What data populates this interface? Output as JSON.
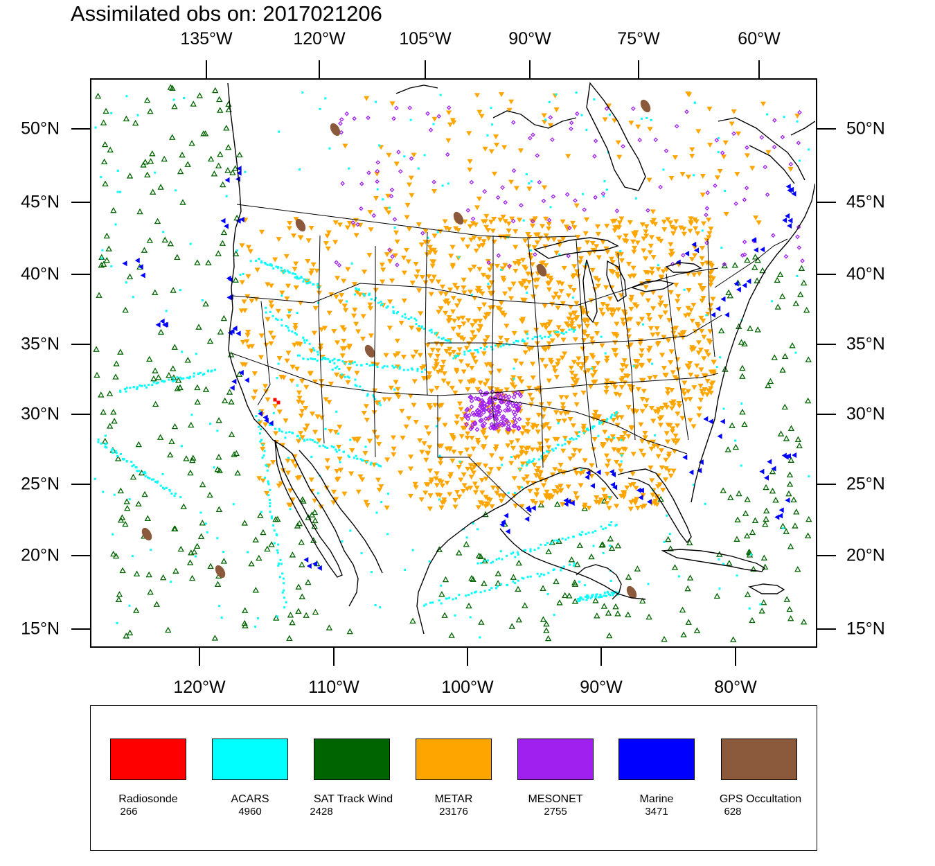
{
  "title": "Assimilated obs on: 2017021206",
  "top_lon_labels": [
    "135°W",
    "120°W",
    "105°W",
    "90°W",
    "75°W",
    "60°W"
  ],
  "bottom_lon_labels": [
    "120°W",
    "110°W",
    "100°W",
    "90°W",
    "80°W"
  ],
  "lat_labels": [
    "50°N",
    "45°N",
    "40°N",
    "35°N",
    "30°N",
    "25°N",
    "20°N",
    "15°N"
  ],
  "legend": [
    {
      "name": "Radiosonde",
      "count": "266",
      "color": "#ff0000"
    },
    {
      "name": "ACARS",
      "count": "4960",
      "color": "#00ffff"
    },
    {
      "name": "SAT Track Wind",
      "count": "2428",
      "color": "#006400"
    },
    {
      "name": "METAR",
      "count": "23176",
      "color": "#ffa500"
    },
    {
      "name": "MESONET",
      "count": "2755",
      "color": "#a020f0"
    },
    {
      "name": "Marine",
      "count": "3471",
      "color": "#0000ff"
    },
    {
      "name": "GPS Occultation",
      "count": "628",
      "color": "#8b5a3c"
    }
  ]
}
